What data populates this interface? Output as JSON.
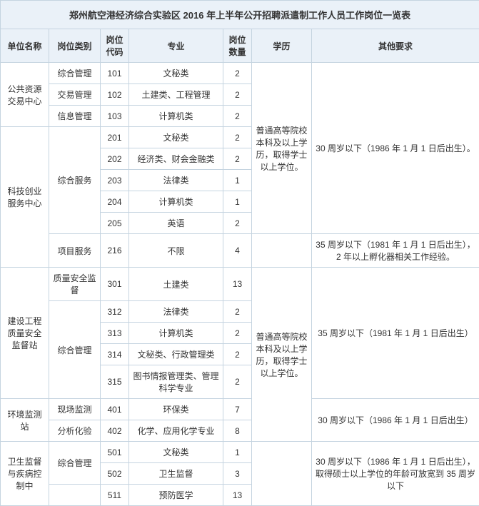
{
  "title": "郑州航空港经济综合实验区 2016 年上半年公开招聘派遣制工作人员工作岗位一览表",
  "headers": {
    "unit": "单位名称",
    "category": "岗位类别",
    "code": "岗位代码",
    "major": "专业",
    "qty": "岗位数量",
    "edu": "学历",
    "other": "其他要求"
  },
  "units": {
    "u1": "公共资源交易中心",
    "u2": "科技创业服务中心",
    "u3": "建设工程质量安全监督站",
    "u4": "环境监测站",
    "u5": "卫生监督与疾病控制中"
  },
  "cats": {
    "c101": "综合管理",
    "c102": "交易管理",
    "c103": "信息管理",
    "c_zhfw": "综合服务",
    "c_xmfw": "项目服务",
    "c_zlaq": "质量安全监督",
    "c_zhgl": "综合管理",
    "c_xcjc": "现场监测",
    "c_fxhy": "分析化验",
    "c_zhgl5": "综合管理"
  },
  "rows": {
    "r101": {
      "code": "101",
      "major": "文秘类",
      "qty": "2"
    },
    "r102": {
      "code": "102",
      "major": "土建类、工程管理",
      "qty": "2"
    },
    "r103": {
      "code": "103",
      "major": "计算机类",
      "qty": "2"
    },
    "r201": {
      "code": "201",
      "major": "文秘类",
      "qty": "2"
    },
    "r202": {
      "code": "202",
      "major": "经济类、财会金融类",
      "qty": "2"
    },
    "r203": {
      "code": "203",
      "major": "法律类",
      "qty": "1"
    },
    "r204": {
      "code": "204",
      "major": "计算机类",
      "qty": "1"
    },
    "r205": {
      "code": "205",
      "major": "英语",
      "qty": "2"
    },
    "r216": {
      "code": "216",
      "major": "不限",
      "qty": "4"
    },
    "r301": {
      "code": "301",
      "major": "土建类",
      "qty": "13"
    },
    "r312": {
      "code": "312",
      "major": "法律类",
      "qty": "2"
    },
    "r313": {
      "code": "313",
      "major": "计算机类",
      "qty": "2"
    },
    "r314": {
      "code": "314",
      "major": "文秘类、行政管理类",
      "qty": "2"
    },
    "r315": {
      "code": "315",
      "major": "图书情报管理类、管理科学专业",
      "qty": "2"
    },
    "r401": {
      "code": "401",
      "major": "环保类",
      "qty": "7"
    },
    "r402": {
      "code": "402",
      "major": "化学、应用化学专业",
      "qty": "8"
    },
    "r501": {
      "code": "501",
      "major": "文秘类",
      "qty": "1"
    },
    "r502": {
      "code": "502",
      "major": "卫生监督",
      "qty": "3"
    },
    "r511": {
      "code": "511",
      "major": "预防医学",
      "qty": "13"
    }
  },
  "edu": {
    "e1": "普通高等院校本科及以上学历，取得学士以上学位。",
    "e2": "普通高等院校本科及以上学历，取得学士以上学位。"
  },
  "other": {
    "o1": "30 周岁以下（1986 年 1 月 1 日后出生）。",
    "o2": "35 周岁以下（1981 年 1 月 1 日后出生），2 年以上孵化器相关工作经验。",
    "o3": "35 周岁以下（1981 年 1 月 1 日后出生）",
    "o4": "30 周岁以下（1986 年 1 月 1 日后出生）",
    "o5": "30 周岁以下（1986 年 1 月 1 日后出生），取得硕士以上学位的年龄可放宽到 35 周岁以下"
  }
}
